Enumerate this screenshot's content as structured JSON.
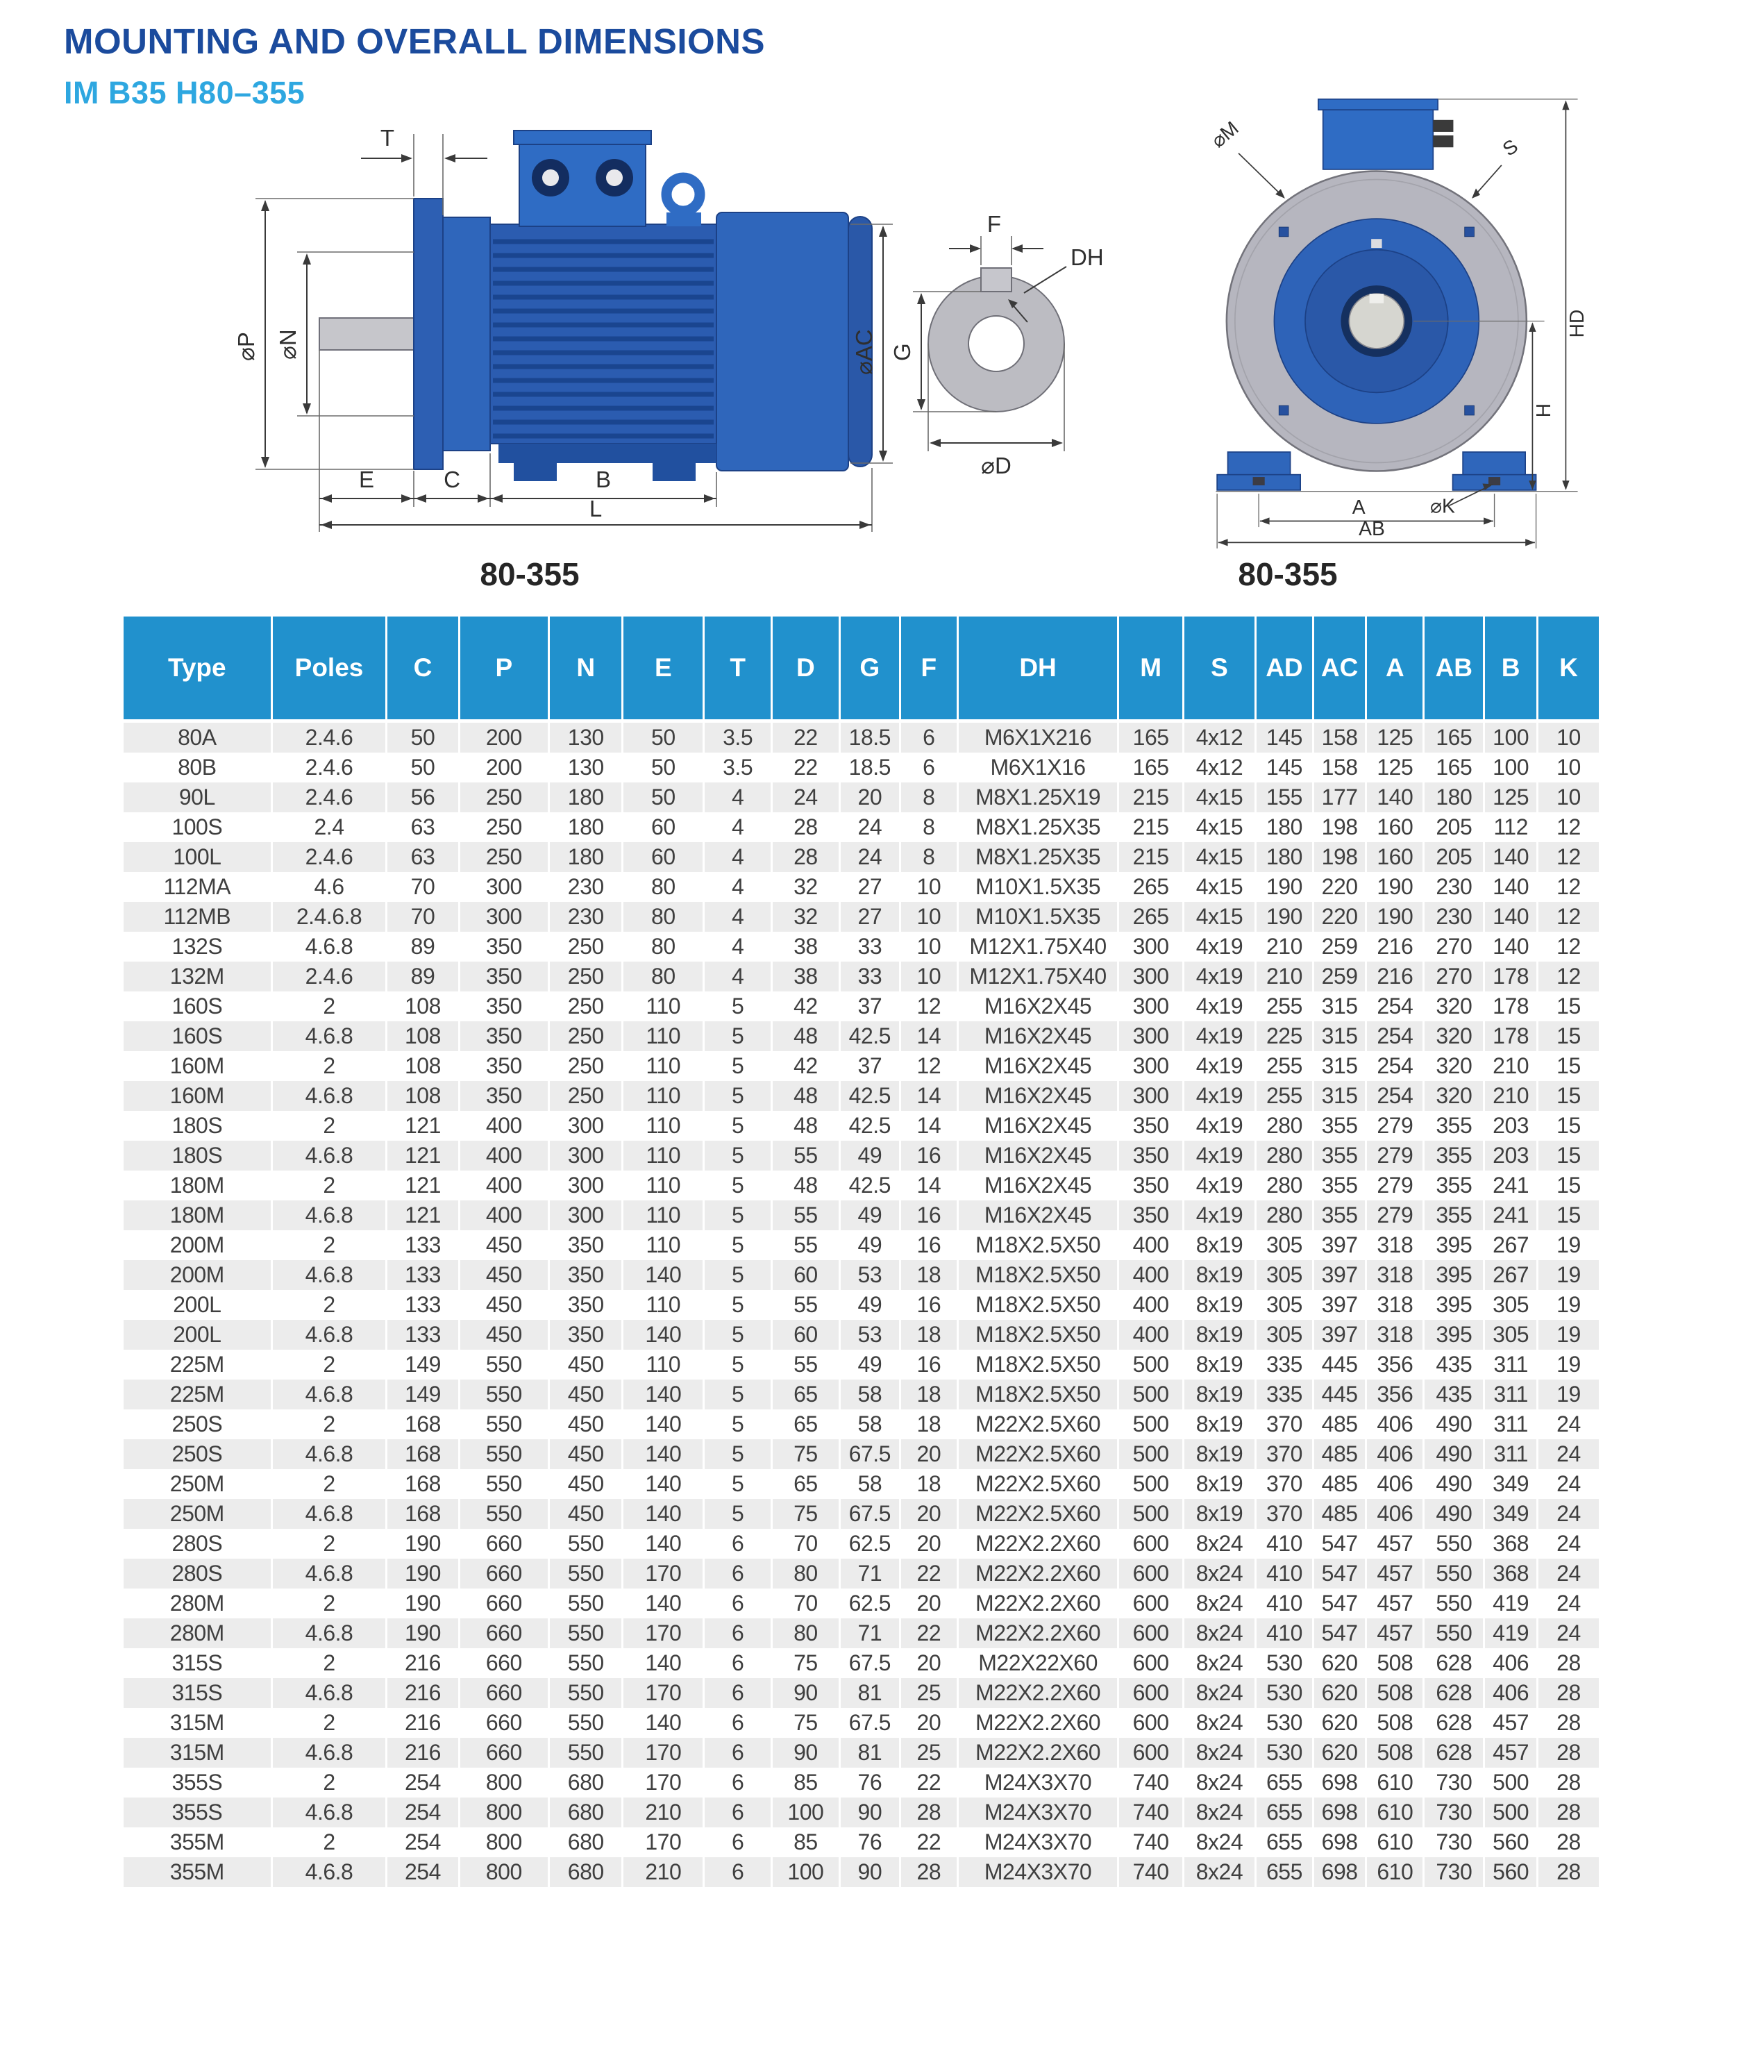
{
  "page": {
    "title": "MOUNTING AND OVERALL DIMENSIONS",
    "subtitle": "IM B35  H80–355"
  },
  "drawings": {
    "side_caption": "80-355",
    "front_caption": "80-355",
    "side_labels": {
      "t": "T",
      "p": "⌀P",
      "n": "⌀N",
      "e": "E",
      "c": "C",
      "b": "B",
      "l": "L",
      "ac": "⌀AC"
    },
    "detail_labels": {
      "f": "F",
      "dh": "DH",
      "g": "G",
      "d": "⌀D"
    },
    "front_labels": {
      "m": "⌀M",
      "s": "S",
      "hd": "HD",
      "h": "H",
      "k": "⌀K",
      "a": "A",
      "ab": "AB"
    }
  },
  "colors": {
    "header_blue": "#2191cd",
    "title_blue": "#1b4b9d",
    "subtitle_blue": "#2ea7e0",
    "row_alt_gray": "#ececec",
    "motor_body_blue": "#2b5cb0",
    "motor_light_blue": "#2f6cc4",
    "metal_gray": "#bcbcc2"
  },
  "table": {
    "columns": [
      "Type",
      "Poles",
      "C",
      "P",
      "N",
      "E",
      "T",
      "D",
      "G",
      "F",
      "DH",
      "M",
      "S",
      "AD",
      "AC",
      "A",
      "AB",
      "B",
      "K"
    ],
    "rows": [
      [
        "80A",
        "2.4.6",
        "50",
        "200",
        "130",
        "50",
        "3.5",
        "22",
        "18.5",
        "6",
        "M6X1X216",
        "165",
        "4x12",
        "145",
        "158",
        "125",
        "165",
        "100",
        "10"
      ],
      [
        "80B",
        "2.4.6",
        "50",
        "200",
        "130",
        "50",
        "3.5",
        "22",
        "18.5",
        "6",
        "M6X1X16",
        "165",
        "4x12",
        "145",
        "158",
        "125",
        "165",
        "100",
        "10"
      ],
      [
        "90L",
        "2.4.6",
        "56",
        "250",
        "180",
        "50",
        "4",
        "24",
        "20",
        "8",
        "M8X1.25X19",
        "215",
        "4x15",
        "155",
        "177",
        "140",
        "180",
        "125",
        "10"
      ],
      [
        "100S",
        "2.4",
        "63",
        "250",
        "180",
        "60",
        "4",
        "28",
        "24",
        "8",
        "M8X1.25X35",
        "215",
        "4x15",
        "180",
        "198",
        "160",
        "205",
        "112",
        "12"
      ],
      [
        "100L",
        "2.4.6",
        "63",
        "250",
        "180",
        "60",
        "4",
        "28",
        "24",
        "8",
        "M8X1.25X35",
        "215",
        "4x15",
        "180",
        "198",
        "160",
        "205",
        "140",
        "12"
      ],
      [
        "112MA",
        "4.6",
        "70",
        "300",
        "230",
        "80",
        "4",
        "32",
        "27",
        "10",
        "M10X1.5X35",
        "265",
        "4x15",
        "190",
        "220",
        "190",
        "230",
        "140",
        "12"
      ],
      [
        "112MB",
        "2.4.6.8",
        "70",
        "300",
        "230",
        "80",
        "4",
        "32",
        "27",
        "10",
        "M10X1.5X35",
        "265",
        "4x15",
        "190",
        "220",
        "190",
        "230",
        "140",
        "12"
      ],
      [
        "132S",
        "4.6.8",
        "89",
        "350",
        "250",
        "80",
        "4",
        "38",
        "33",
        "10",
        "M12X1.75X40",
        "300",
        "4x19",
        "210",
        "259",
        "216",
        "270",
        "140",
        "12"
      ],
      [
        "132M",
        "2.4.6",
        "89",
        "350",
        "250",
        "80",
        "4",
        "38",
        "33",
        "10",
        "M12X1.75X40",
        "300",
        "4x19",
        "210",
        "259",
        "216",
        "270",
        "178",
        "12"
      ],
      [
        "160S",
        "2",
        "108",
        "350",
        "250",
        "110",
        "5",
        "42",
        "37",
        "12",
        "M16X2X45",
        "300",
        "4x19",
        "255",
        "315",
        "254",
        "320",
        "178",
        "15"
      ],
      [
        "160S",
        "4.6.8",
        "108",
        "350",
        "250",
        "110",
        "5",
        "48",
        "42.5",
        "14",
        "M16X2X45",
        "300",
        "4x19",
        "225",
        "315",
        "254",
        "320",
        "178",
        "15"
      ],
      [
        "160M",
        "2",
        "108",
        "350",
        "250",
        "110",
        "5",
        "42",
        "37",
        "12",
        "M16X2X45",
        "300",
        "4x19",
        "255",
        "315",
        "254",
        "320",
        "210",
        "15"
      ],
      [
        "160M",
        "4.6.8",
        "108",
        "350",
        "250",
        "110",
        "5",
        "48",
        "42.5",
        "14",
        "M16X2X45",
        "300",
        "4x19",
        "255",
        "315",
        "254",
        "320",
        "210",
        "15"
      ],
      [
        "180S",
        "2",
        "121",
        "400",
        "300",
        "110",
        "5",
        "48",
        "42.5",
        "14",
        "M16X2X45",
        "350",
        "4x19",
        "280",
        "355",
        "279",
        "355",
        "203",
        "15"
      ],
      [
        "180S",
        "4.6.8",
        "121",
        "400",
        "300",
        "110",
        "5",
        "55",
        "49",
        "16",
        "M16X2X45",
        "350",
        "4x19",
        "280",
        "355",
        "279",
        "355",
        "203",
        "15"
      ],
      [
        "180M",
        "2",
        "121",
        "400",
        "300",
        "110",
        "5",
        "48",
        "42.5",
        "14",
        "M16X2X45",
        "350",
        "4x19",
        "280",
        "355",
        "279",
        "355",
        "241",
        "15"
      ],
      [
        "180M",
        "4.6.8",
        "121",
        "400",
        "300",
        "110",
        "5",
        "55",
        "49",
        "16",
        "M16X2X45",
        "350",
        "4x19",
        "280",
        "355",
        "279",
        "355",
        "241",
        "15"
      ],
      [
        "200M",
        "2",
        "133",
        "450",
        "350",
        "110",
        "5",
        "55",
        "49",
        "16",
        "M18X2.5X50",
        "400",
        "8x19",
        "305",
        "397",
        "318",
        "395",
        "267",
        "19"
      ],
      [
        "200M",
        "4.6.8",
        "133",
        "450",
        "350",
        "140",
        "5",
        "60",
        "53",
        "18",
        "M18X2.5X50",
        "400",
        "8x19",
        "305",
        "397",
        "318",
        "395",
        "267",
        "19"
      ],
      [
        "200L",
        "2",
        "133",
        "450",
        "350",
        "110",
        "5",
        "55",
        "49",
        "16",
        "M18X2.5X50",
        "400",
        "8x19",
        "305",
        "397",
        "318",
        "395",
        "305",
        "19"
      ],
      [
        "200L",
        "4.6.8",
        "133",
        "450",
        "350",
        "140",
        "5",
        "60",
        "53",
        "18",
        "M18X2.5X50",
        "400",
        "8x19",
        "305",
        "397",
        "318",
        "395",
        "305",
        "19"
      ],
      [
        "225M",
        "2",
        "149",
        "550",
        "450",
        "110",
        "5",
        "55",
        "49",
        "16",
        "M18X2.5X50",
        "500",
        "8x19",
        "335",
        "445",
        "356",
        "435",
        "311",
        "19"
      ],
      [
        "225M",
        "4.6.8",
        "149",
        "550",
        "450",
        "140",
        "5",
        "65",
        "58",
        "18",
        "M18X2.5X50",
        "500",
        "8x19",
        "335",
        "445",
        "356",
        "435",
        "311",
        "19"
      ],
      [
        "250S",
        "2",
        "168",
        "550",
        "450",
        "140",
        "5",
        "65",
        "58",
        "18",
        "M22X2.5X60",
        "500",
        "8x19",
        "370",
        "485",
        "406",
        "490",
        "311",
        "24"
      ],
      [
        "250S",
        "4.6.8",
        "168",
        "550",
        "450",
        "140",
        "5",
        "75",
        "67.5",
        "20",
        "M22X2.5X60",
        "500",
        "8x19",
        "370",
        "485",
        "406",
        "490",
        "311",
        "24"
      ],
      [
        "250M",
        "2",
        "168",
        "550",
        "450",
        "140",
        "5",
        "65",
        "58",
        "18",
        "M22X2.5X60",
        "500",
        "8x19",
        "370",
        "485",
        "406",
        "490",
        "349",
        "24"
      ],
      [
        "250M",
        "4.6.8",
        "168",
        "550",
        "450",
        "140",
        "5",
        "75",
        "67.5",
        "20",
        "M22X2.5X60",
        "500",
        "8x19",
        "370",
        "485",
        "406",
        "490",
        "349",
        "24"
      ],
      [
        "280S",
        "2",
        "190",
        "660",
        "550",
        "140",
        "6",
        "70",
        "62.5",
        "20",
        "M22X2.2X60",
        "600",
        "8x24",
        "410",
        "547",
        "457",
        "550",
        "368",
        "24"
      ],
      [
        "280S",
        "4.6.8",
        "190",
        "660",
        "550",
        "170",
        "6",
        "80",
        "71",
        "22",
        "M22X2.2X60",
        "600",
        "8x24",
        "410",
        "547",
        "457",
        "550",
        "368",
        "24"
      ],
      [
        "280M",
        "2",
        "190",
        "660",
        "550",
        "140",
        "6",
        "70",
        "62.5",
        "20",
        "M22X2.2X60",
        "600",
        "8x24",
        "410",
        "547",
        "457",
        "550",
        "419",
        "24"
      ],
      [
        "280M",
        "4.6.8",
        "190",
        "660",
        "550",
        "170",
        "6",
        "80",
        "71",
        "22",
        "M22X2.2X60",
        "600",
        "8x24",
        "410",
        "547",
        "457",
        "550",
        "419",
        "24"
      ],
      [
        "315S",
        "2",
        "216",
        "660",
        "550",
        "140",
        "6",
        "75",
        "67.5",
        "20",
        "M22X22X60",
        "600",
        "8x24",
        "530",
        "620",
        "508",
        "628",
        "406",
        "28"
      ],
      [
        "315S",
        "4.6.8",
        "216",
        "660",
        "550",
        "170",
        "6",
        "90",
        "81",
        "25",
        "M22X2.2X60",
        "600",
        "8x24",
        "530",
        "620",
        "508",
        "628",
        "406",
        "28"
      ],
      [
        "315M",
        "2",
        "216",
        "660",
        "550",
        "140",
        "6",
        "75",
        "67.5",
        "20",
        "M22X2.2X60",
        "600",
        "8x24",
        "530",
        "620",
        "508",
        "628",
        "457",
        "28"
      ],
      [
        "315M",
        "4.6.8",
        "216",
        "660",
        "550",
        "170",
        "6",
        "90",
        "81",
        "25",
        "M22X2.2X60",
        "600",
        "8x24",
        "530",
        "620",
        "508",
        "628",
        "457",
        "28"
      ],
      [
        "355S",
        "2",
        "254",
        "800",
        "680",
        "170",
        "6",
        "85",
        "76",
        "22",
        "M24X3X70",
        "740",
        "8x24",
        "655",
        "698",
        "610",
        "730",
        "500",
        "28"
      ],
      [
        "355S",
        "4.6.8",
        "254",
        "800",
        "680",
        "210",
        "6",
        "100",
        "90",
        "28",
        "M24X3X70",
        "740",
        "8x24",
        "655",
        "698",
        "610",
        "730",
        "500",
        "28"
      ],
      [
        "355M",
        "2",
        "254",
        "800",
        "680",
        "170",
        "6",
        "85",
        "76",
        "22",
        "M24X3X70",
        "740",
        "8x24",
        "655",
        "698",
        "610",
        "730",
        "560",
        "28"
      ],
      [
        "355M",
        "4.6.8",
        "254",
        "800",
        "680",
        "210",
        "6",
        "100",
        "90",
        "28",
        "M24X3X70",
        "740",
        "8x24",
        "655",
        "698",
        "610",
        "730",
        "560",
        "28"
      ]
    ]
  }
}
